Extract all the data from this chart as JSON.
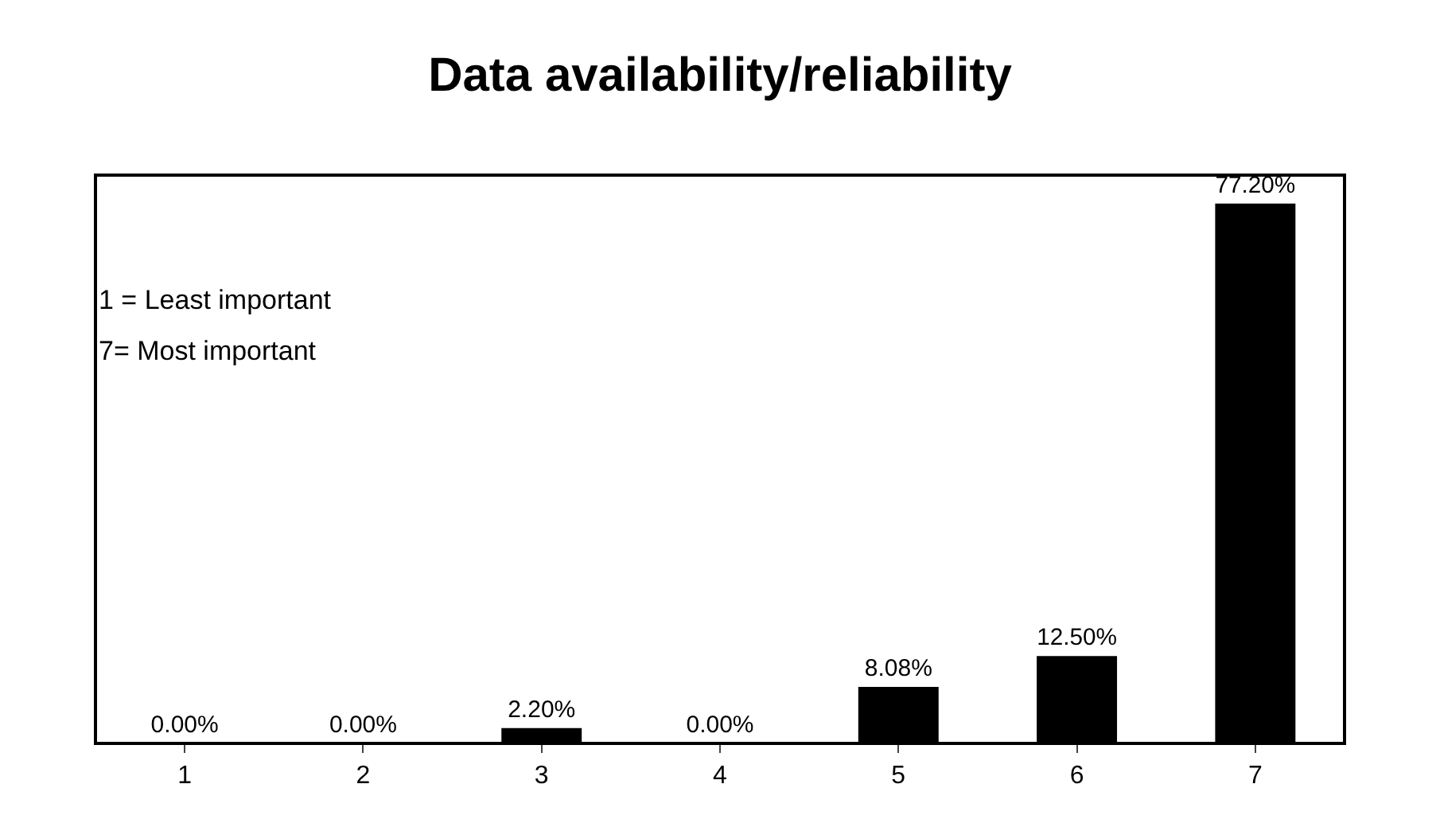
{
  "chart_data": {
    "type": "bar",
    "title": "Data availability/reliability",
    "categories": [
      "1",
      "2",
      "3",
      "4",
      "5",
      "6",
      "7"
    ],
    "values": [
      0,
      0,
      2.2,
      0,
      8.08,
      12.5,
      77.2
    ],
    "value_labels": [
      "0.00%",
      "0.00%",
      "2.20%",
      "0.00%",
      "8.08%",
      "12.50%",
      "77.20%"
    ],
    "color": "#000000",
    "annotations": [
      "1 = Least important",
      "7= Most important"
    ],
    "grid": false,
    "legend": false
  }
}
